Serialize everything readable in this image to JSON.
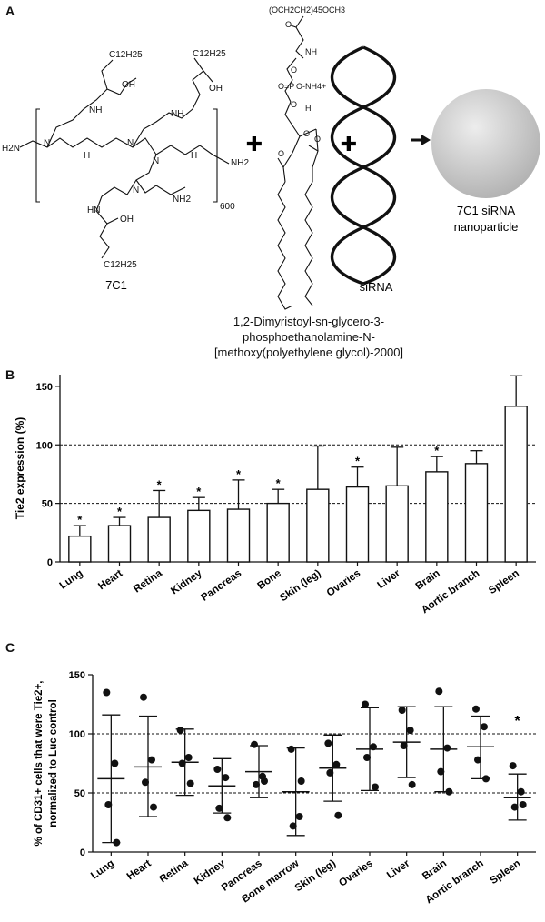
{
  "panel_a": {
    "label": "A",
    "lipidoid": {
      "name": "7C1",
      "groups": {
        "c12": "C12H25",
        "oh": "OH",
        "nh": "NH",
        "n": "N",
        "h2n": "H2N",
        "nh2": "NH2",
        "h": "H",
        "hn": "HN",
        "repeat": "600"
      }
    },
    "peg_lipid": {
      "peg_chain": "(OCH2CH2)45OCH3",
      "ammonium": "O-NH4+",
      "caption_lines": [
        "1,2-Dimyristoyl-sn-glycero-3-",
        "phosphoethanolamine-N-",
        "[methoxy(polyethylene glycol)-2000]"
      ]
    },
    "sirna_label": "siRNA",
    "nanoparticle_label_lines": [
      "7C1 siRNA",
      "nanoparticle"
    ]
  },
  "panel_b": {
    "label": "B"
  },
  "panel_c": {
    "label": "C"
  },
  "chart_data": [
    {
      "type": "bar",
      "panel": "B",
      "ylabel": "Tie2 expression (%)",
      "ylim": [
        0,
        160
      ],
      "yticks": [
        0,
        50,
        100,
        150
      ],
      "reference_lines": [
        50,
        100
      ],
      "categories": [
        "Lung",
        "Heart",
        "Retina",
        "Kidney",
        "Pancreas",
        "Bone",
        "Skin (leg)",
        "Ovaries",
        "Liver",
        "Brain",
        "Aortic branch",
        "Spleen"
      ],
      "values": [
        22,
        31,
        38,
        44,
        45,
        50,
        62,
        64,
        65,
        77,
        84,
        133
      ],
      "error_upper": [
        31,
        38,
        61,
        55,
        70,
        62,
        99,
        81,
        98,
        90,
        95,
        159
      ],
      "significant": [
        true,
        true,
        true,
        true,
        true,
        true,
        false,
        true,
        false,
        true,
        false,
        false
      ],
      "sig_marker": "*"
    },
    {
      "type": "scatter",
      "panel": "C",
      "ylabel_lines": [
        "% of CD31+ cells that were Tie2+,",
        "normalized to Luc control"
      ],
      "ylim": [
        0,
        150
      ],
      "yticks": [
        0,
        50,
        100,
        150
      ],
      "reference_lines": [
        50,
        100
      ],
      "categories": [
        "Lung",
        "Heart",
        "Retina",
        "Kidney",
        "Pancreas",
        "Bone marrow",
        "Skin (leg)",
        "Ovaries",
        "Liver",
        "Brain",
        "Aortic branch",
        "Spleen"
      ],
      "means": [
        62,
        72,
        76,
        56,
        68,
        51,
        71,
        87,
        93,
        87,
        89,
        46
      ],
      "sd_upper": [
        116,
        115,
        104,
        79,
        90,
        88,
        99,
        122,
        123,
        123,
        115,
        66
      ],
      "sd_lower": [
        8,
        30,
        48,
        33,
        46,
        14,
        43,
        52,
        63,
        51,
        62,
        27
      ],
      "points": [
        [
          135,
          75,
          40,
          8
        ],
        [
          131,
          78,
          59,
          38
        ],
        [
          103,
          80,
          75,
          58
        ],
        [
          70,
          63,
          37,
          29
        ],
        [
          91,
          64,
          57,
          60
        ],
        [
          87,
          30,
          22,
          60
        ],
        [
          92,
          74,
          67,
          31
        ],
        [
          125,
          89,
          80,
          55
        ],
        [
          120,
          103,
          90,
          57
        ],
        [
          136,
          88,
          68,
          51
        ],
        [
          121,
          106,
          78,
          62
        ],
        [
          73,
          51,
          38,
          40
        ]
      ],
      "annotation": {
        "text": "*",
        "category": "Spleen",
        "y": 107
      }
    }
  ]
}
